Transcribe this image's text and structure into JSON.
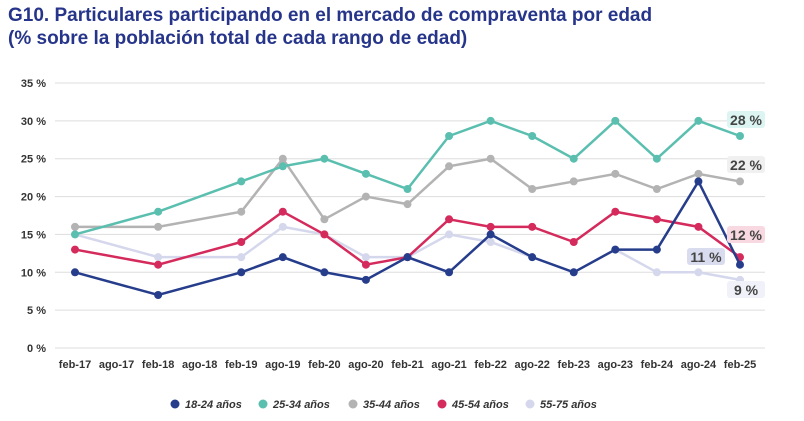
{
  "chart_data": {
    "type": "line",
    "title": "G10. Particulares participando en el mercado de compraventa por edad",
    "subtitle": "(% sobre la población total de cada rango de edad)",
    "x_ticks": [
      "feb-17",
      "ago-17",
      "feb-18",
      "ago-18",
      "feb-19",
      "ago-19",
      "feb-20",
      "ago-20",
      "feb-21",
      "ago-21",
      "feb-22",
      "ago-22",
      "feb-23",
      "ago-23",
      "feb-24",
      "ago-24",
      "feb-25"
    ],
    "x": [
      "feb-17",
      "feb-18",
      "feb-19",
      "ago-19",
      "feb-20",
      "ago-20",
      "feb-21",
      "ago-21",
      "feb-22",
      "ago-22",
      "feb-23",
      "ago-23",
      "feb-24",
      "ago-24",
      "feb-25"
    ],
    "y_ticks": [
      "0 %",
      "5 %",
      "10 %",
      "15 %",
      "20 %",
      "25 %",
      "30 %",
      "35 %"
    ],
    "ylim": [
      0,
      35
    ],
    "grid": true,
    "legend_position": "bottom",
    "series": [
      {
        "name": "18-24 años",
        "color": "#263d8c",
        "values": [
          10,
          7,
          10,
          12,
          10,
          9,
          12,
          10,
          15,
          12,
          10,
          13,
          13,
          22,
          11
        ],
        "end_label": "11 %",
        "label_bg": "#d9dcef"
      },
      {
        "name": "25-34 años",
        "color": "#5bbfb0",
        "values": [
          15,
          18,
          22,
          24,
          25,
          23,
          21,
          28,
          30,
          28,
          25,
          30,
          25,
          30,
          28
        ],
        "end_label": "28 %",
        "label_bg": "#dcf5f2"
      },
      {
        "name": "35-44 años",
        "color": "#b3b3b3",
        "values": [
          16,
          16,
          18,
          25,
          17,
          20,
          19,
          24,
          25,
          21,
          22,
          23,
          21,
          23,
          22
        ],
        "end_label": "22 %",
        "label_bg": "#f0f0f0"
      },
      {
        "name": "45-54 años",
        "color": "#d42a5c",
        "values": [
          13,
          11,
          14,
          18,
          15,
          11,
          12,
          17,
          16,
          16,
          14,
          18,
          17,
          16,
          12
        ],
        "end_label": "12 %",
        "label_bg": "#f8d9e2"
      },
      {
        "name": "55-75 años",
        "color": "#d5d7ec",
        "values": [
          15,
          12,
          12,
          16,
          15,
          12,
          12,
          15,
          14,
          12,
          10,
          13,
          10,
          10,
          9
        ],
        "end_label": "9 %",
        "label_bg": "#f1f2f9"
      }
    ]
  }
}
